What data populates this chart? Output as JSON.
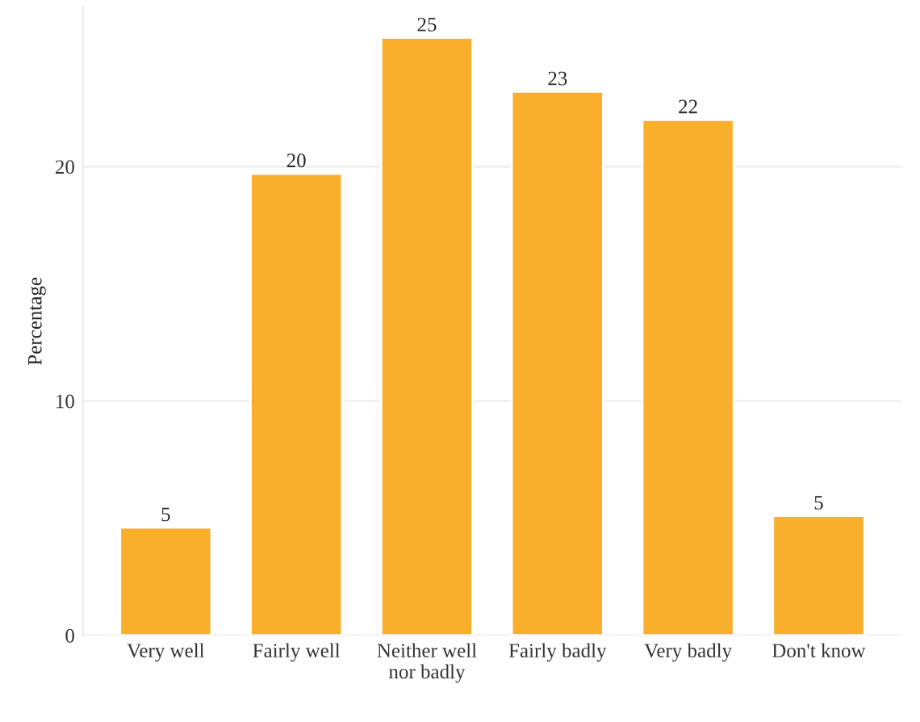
{
  "chart_data": {
    "type": "bar",
    "ylabel": "Percentage",
    "categories": [
      "Very well",
      "Fairly well",
      "Neither well\nnor badly",
      "Fairly badly",
      "Very badly",
      "Don't know"
    ],
    "values": [
      4.6,
      19.7,
      25.5,
      23.2,
      22.0,
      5.1
    ],
    "value_labels": [
      "5",
      "20",
      "25",
      "23",
      "22",
      "5"
    ],
    "color": "#f9ae2c",
    "ylim": [
      0,
      26.8
    ],
    "yticks": [
      0,
      10,
      20
    ],
    "grid": "y",
    "legend": false
  }
}
